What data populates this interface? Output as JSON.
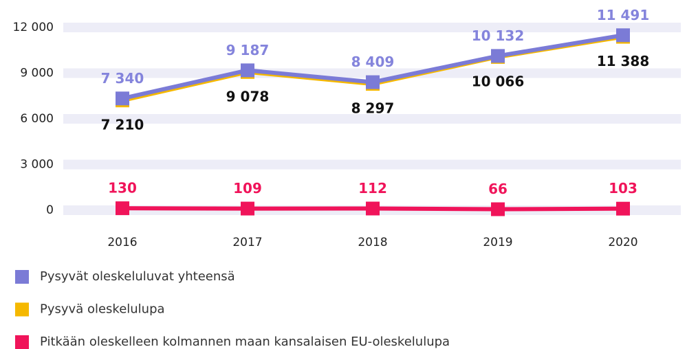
{
  "chart_data": {
    "type": "line",
    "categories": [
      "2016",
      "2017",
      "2018",
      "2019",
      "2020"
    ],
    "ylim": [
      0,
      12000
    ],
    "yticks": [
      0,
      {
        "value": 3000,
        "label": "3 000"
      },
      {
        "value": 6000,
        "label": "6 000"
      },
      {
        "value": 9000,
        "label": "9 000"
      },
      {
        "value": 12000,
        "label": "12 000"
      }
    ],
    "grid": true,
    "series": [
      {
        "name": "Pysyvät oleskeluluvat yhteensä",
        "color": "#7b7bd6",
        "label_color": "#8484dc",
        "values": [
          7340,
          9187,
          8409,
          10132,
          11491
        ],
        "value_labels": [
          "7 340",
          "9 187",
          "8 409",
          "10 132",
          "11 491"
        ]
      },
      {
        "name": "Pysyvä oleskelulupa",
        "color": "#f5b800",
        "label_color": "#111111",
        "values": [
          7210,
          9078,
          8297,
          10066,
          11388
        ],
        "value_labels": [
          "7 210",
          "9 078",
          "8 297",
          "10 066",
          "11 388"
        ]
      },
      {
        "name": "Pitkään oleskelleen kolmannen maan kansalaisen EU-oleskelulupa",
        "color": "#f0145a",
        "label_color": "#f0145a",
        "values": [
          130,
          109,
          112,
          66,
          103
        ]
      }
    ]
  }
}
